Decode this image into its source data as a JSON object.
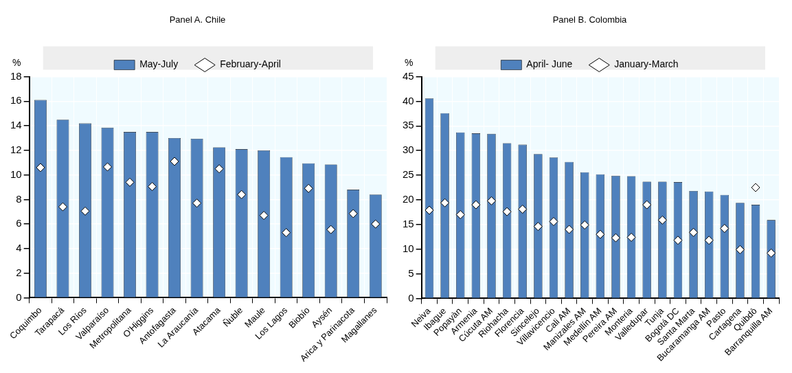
{
  "chart_data": [
    {
      "type": "bar",
      "title": "Panel A. Chile",
      "ylabel": "%",
      "categories": [
        "Coquimbo",
        "Tarapacá",
        "Los Ríos",
        "Valparaíso",
        "Metropolitana",
        "O'Higgins",
        "Antofagasta",
        "La Araucanía",
        "Atacama",
        "Ñuble",
        "Maule",
        "Los Lagos",
        "Biobío",
        "Aysén",
        "Arica y Parinacota",
        "Magallanes"
      ],
      "series": [
        {
          "name": "May-July",
          "color": "#4f81bd",
          "values": [
            16.1,
            14.5,
            14.2,
            13.85,
            13.5,
            13.5,
            13.0,
            12.95,
            12.25,
            12.1,
            12.0,
            11.45,
            10.95,
            10.85,
            8.8,
            8.4
          ]
        },
        {
          "name": "February-April",
          "type": "scatter",
          "color": "#ffffff",
          "values": [
            10.6,
            7.4,
            7.05,
            10.65,
            9.4,
            9.05,
            11.1,
            7.7,
            10.5,
            8.4,
            6.7,
            5.3,
            8.9,
            5.55,
            6.85,
            6.0
          ]
        }
      ],
      "ylim": [
        0,
        18
      ],
      "yticks": [
        0,
        2,
        4,
        6,
        8,
        10,
        12,
        14,
        16,
        18
      ],
      "grid": true,
      "legend": "top",
      "marker": "diamond"
    },
    {
      "type": "bar",
      "title": "Panel B. Colombia",
      "ylabel": "%",
      "categories": [
        "Neiva",
        "Ibague",
        "Popayàn",
        "Armenia",
        "Cúcuta AM",
        "Riohacha",
        "Florencia",
        "Sincelejo",
        "Villavicencio",
        "Cali AM",
        "Manizales AM",
        "Medellín AM",
        "Pereira AM",
        "Monteria",
        "Valledupar",
        "Tunja",
        "Bogotá DC",
        "Santa Marta",
        "Bucaramanga AM",
        "Pasto",
        "Cartagena",
        "Quibdò",
        "Barranquilla AM"
      ],
      "series": [
        {
          "name": "April- June",
          "color": "#4f81bd",
          "values": [
            40.6,
            37.6,
            33.7,
            33.5,
            33.4,
            31.5,
            31.2,
            29.3,
            28.6,
            27.7,
            25.6,
            25.2,
            24.9,
            24.8,
            23.7,
            23.7,
            23.6,
            21.8,
            21.7,
            21.0,
            19.4,
            19.0,
            15.9
          ]
        },
        {
          "name": "January-March",
          "type": "scatter",
          "color": "#ffffff",
          "values": [
            17.9,
            19.4,
            17.0,
            19.0,
            19.8,
            17.6,
            18.1,
            14.6,
            15.6,
            14.0,
            14.9,
            13.0,
            12.3,
            12.4,
            19.0,
            15.9,
            11.8,
            13.4,
            11.8,
            14.2,
            9.9,
            22.5,
            9.2
          ]
        }
      ],
      "ylim": [
        0,
        45
      ],
      "yticks": [
        0,
        5,
        10,
        15,
        20,
        25,
        30,
        35,
        40,
        45
      ],
      "grid": true,
      "legend": "top",
      "marker": "diamond"
    }
  ]
}
